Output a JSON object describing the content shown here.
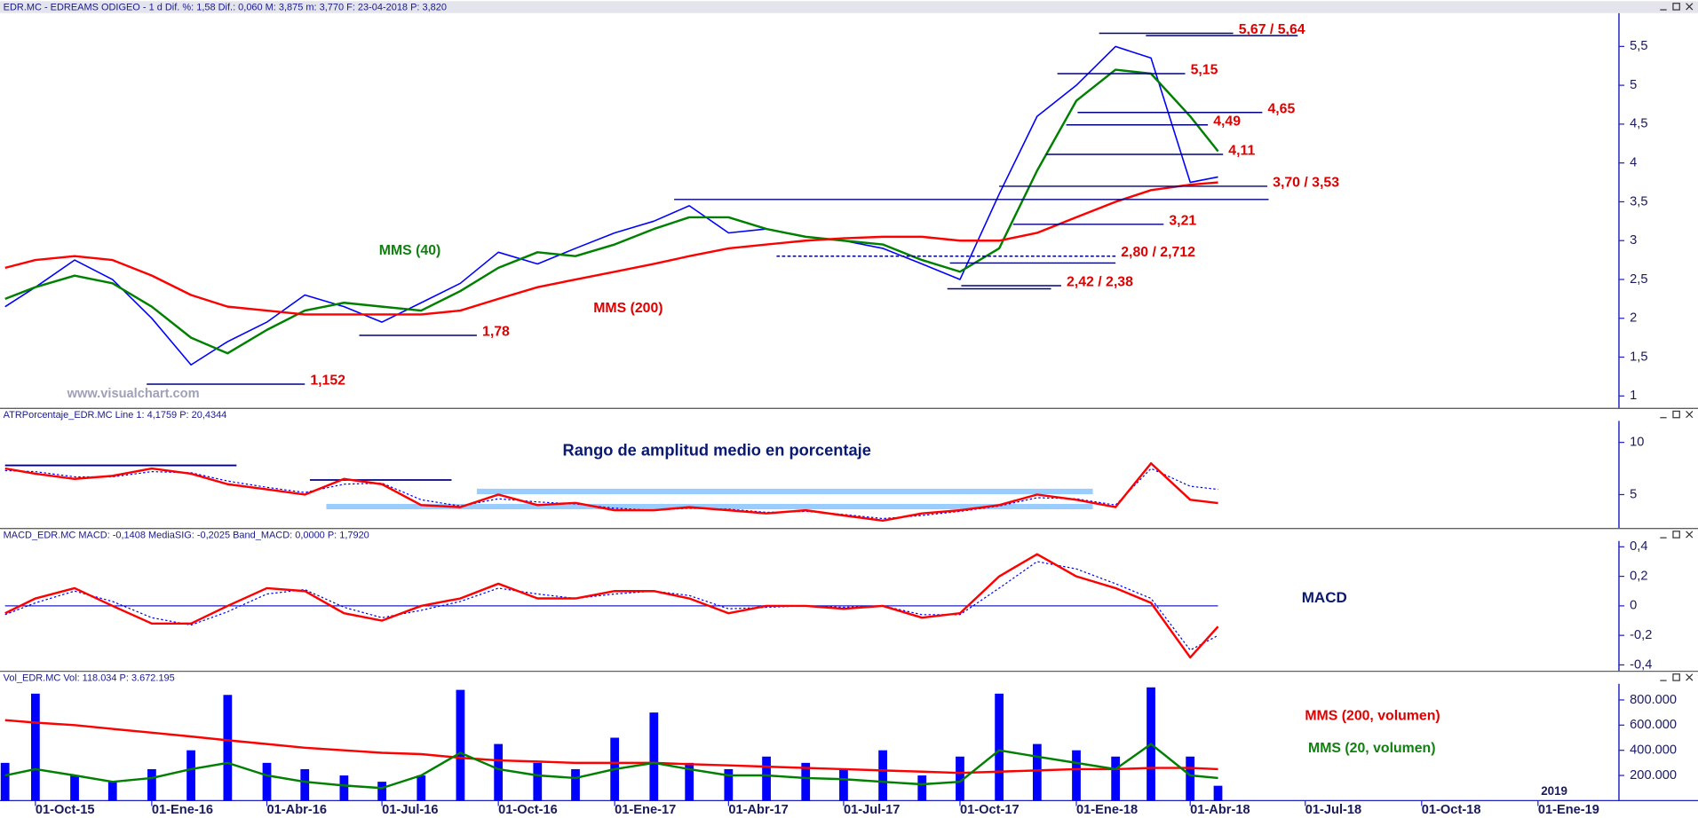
{
  "chart_data": [
    {
      "type": "line",
      "title": "EDR.MC - EDREAMS ODIGEO -  1 d  Dif. %: 1,58  Dif.: 0,060  M: 3,875  m: 3,770  F: 23-04-2018  P: 3,820",
      "x": [
        "2015-09-07",
        "2015-10-01",
        "2015-11-01",
        "2015-12-01",
        "2016-01-01",
        "2016-02-01",
        "2016-03-01",
        "2016-04-01",
        "2016-05-01",
        "2016-06-01",
        "2016-07-01",
        "2016-08-01",
        "2016-09-01",
        "2016-10-01",
        "2016-11-01",
        "2016-12-01",
        "2017-01-01",
        "2017-02-01",
        "2017-03-01",
        "2017-04-01",
        "2017-05-01",
        "2017-06-01",
        "2017-07-01",
        "2017-08-01",
        "2017-09-01",
        "2017-10-01",
        "2017-11-01",
        "2017-12-01",
        "2018-01-01",
        "2018-02-01",
        "2018-03-01",
        "2018-04-01",
        "2018-04-23"
      ],
      "xlim": [
        "2015-09-03",
        "2019-03-06"
      ],
      "ylim": [
        0.86,
        5.93
      ],
      "yticks": [
        1,
        {
          "value": 1.5,
          "label": "1,5"
        },
        2,
        {
          "value": 2.5,
          "label": "2,5"
        },
        3,
        {
          "value": 3.5,
          "label": "3,5"
        },
        4,
        {
          "value": 4.5,
          "label": "4,5"
        },
        5,
        {
          "value": 5.5,
          "label": "5,5"
        }
      ],
      "series": [
        {
          "color": "#0000ff",
          "values": [
            2.15,
            2.4,
            2.75,
            2.5,
            2.0,
            1.4,
            1.7,
            1.95,
            2.3,
            2.15,
            1.95,
            2.2,
            2.45,
            2.85,
            2.7,
            2.9,
            3.1,
            3.25,
            3.45,
            3.1,
            3.15,
            3.05,
            3.0,
            2.9,
            2.7,
            2.5,
            3.6,
            4.6,
            5.0,
            5.5,
            5.35,
            3.75,
            3.82
          ]
        },
        {
          "name": "MMS (40)",
          "color": "#008000",
          "values": [
            2.25,
            2.4,
            2.55,
            2.45,
            2.15,
            1.75,
            1.55,
            1.85,
            2.1,
            2.2,
            2.15,
            2.1,
            2.35,
            2.65,
            2.85,
            2.8,
            2.95,
            3.15,
            3.3,
            3.3,
            3.15,
            3.05,
            3.0,
            2.95,
            2.75,
            2.6,
            2.9,
            3.9,
            4.8,
            5.2,
            5.15,
            4.6,
            4.15
          ]
        },
        {
          "name": "MMS (200)",
          "color": "#ff0000",
          "values": [
            2.65,
            2.75,
            2.8,
            2.75,
            2.55,
            2.3,
            2.15,
            2.1,
            2.05,
            2.05,
            2.05,
            2.05,
            2.1,
            2.25,
            2.4,
            2.5,
            2.6,
            2.7,
            2.8,
            2.9,
            2.95,
            3.0,
            3.03,
            3.05,
            3.05,
            3.0,
            3.0,
            3.1,
            3.3,
            3.5,
            3.65,
            3.72,
            3.75
          ]
        }
      ],
      "levels": [
        {
          "label": "5,67 / 5,64",
          "lines": [
            {
              "value": 5.67,
              "from": "2018-01-19",
              "to": "2018-05-05"
            },
            {
              "value": 5.64,
              "from": "2018-02-25",
              "to": "2018-06-25"
            }
          ]
        },
        {
          "label": "5,15",
          "lines": [
            {
              "value": 5.15,
              "from": "2017-12-17",
              "to": "2018-03-28"
            }
          ]
        },
        {
          "label": "4,65",
          "lines": [
            {
              "value": 4.65,
              "from": "2018-01-02",
              "to": "2018-05-28"
            }
          ]
        },
        {
          "label": "4,49",
          "lines": [
            {
              "value": 4.49,
              "from": "2017-12-24",
              "to": "2018-04-15"
            }
          ]
        },
        {
          "label": "4,11",
          "lines": [
            {
              "value": 4.11,
              "from": "2017-12-08",
              "to": "2018-04-27"
            }
          ]
        },
        {
          "label": "3,70 / 3,53",
          "lines": [
            {
              "value": 3.7,
              "from": "2017-11-01",
              "to": "2018-06-01"
            },
            {
              "value": 3.53,
              "from": "2017-02-17",
              "to": "2018-06-02"
            }
          ]
        },
        {
          "label": "3,21",
          "lines": [
            {
              "value": 3.21,
              "from": "2017-11-12",
              "to": "2018-03-11"
            }
          ]
        },
        {
          "label": "2,80 / 2,712",
          "lines": [
            {
              "value": 2.8,
              "from": "2017-05-09",
              "to": "2018-02-01",
              "style": "dashed"
            },
            {
              "value": 2.712,
              "from": "2017-09-23",
              "to": "2018-02-01"
            }
          ]
        },
        {
          "label": "2,42 / 2,38",
          "lines": [
            {
              "value": 2.42,
              "from": "2017-10-02",
              "to": "2017-12-20"
            },
            {
              "value": 2.38,
              "from": "2017-09-21",
              "to": "2017-12-12"
            }
          ]
        },
        {
          "label": "1,78",
          "lines": [
            {
              "value": 1.78,
              "from": "2016-06-13",
              "to": "2016-09-14"
            }
          ]
        },
        {
          "label": "1,152",
          "lines": [
            {
              "value": 1.152,
              "from": "2015-12-28",
              "to": "2016-05-01"
            }
          ]
        }
      ],
      "annotations": [
        "www.visualchart.com"
      ]
    },
    {
      "type": "line",
      "title": "ATRPorcentaje_EDR.MC  Line 1: 4,1759  P: 20,4344",
      "x": [
        "2015-09-07",
        "2015-10-01",
        "2015-11-01",
        "2015-12-01",
        "2016-01-01",
        "2016-02-01",
        "2016-03-01",
        "2016-04-01",
        "2016-05-01",
        "2016-06-01",
        "2016-07-01",
        "2016-08-01",
        "2016-09-01",
        "2016-10-01",
        "2016-11-01",
        "2016-12-01",
        "2017-01-01",
        "2017-02-01",
        "2017-03-01",
        "2017-04-01",
        "2017-05-01",
        "2017-06-01",
        "2017-07-01",
        "2017-08-01",
        "2017-09-01",
        "2017-10-01",
        "2017-11-01",
        "2017-12-01",
        "2018-01-01",
        "2018-02-01",
        "2018-03-01",
        "2018-04-01",
        "2018-04-23"
      ],
      "xlim": [
        "2015-09-03",
        "2019-03-06"
      ],
      "ylim": [
        1.8,
        13.2
      ],
      "yticks": [
        5,
        10
      ],
      "series": [
        {
          "color": "#0000ff",
          "style": "dotted",
          "values": [
            7.3,
            7.2,
            6.7,
            6.7,
            7.2,
            7.1,
            6.3,
            5.7,
            5.2,
            6.0,
            6.1,
            4.5,
            3.9,
            4.6,
            4.3,
            4.1,
            3.7,
            3.5,
            3.7,
            3.6,
            3.3,
            3.4,
            3.1,
            2.7,
            3.0,
            3.4,
            3.9,
            4.7,
            4.6,
            4.0,
            7.5,
            5.8,
            5.5
          ]
        },
        {
          "color": "#ff0000",
          "values": [
            7.5,
            7.0,
            6.5,
            6.8,
            7.5,
            7.0,
            6.0,
            5.5,
            5.0,
            6.5,
            6.0,
            4.0,
            3.8,
            5.0,
            4.0,
            4.2,
            3.5,
            3.5,
            3.8,
            3.5,
            3.2,
            3.5,
            3.0,
            2.5,
            3.2,
            3.5,
            4.0,
            5.0,
            4.5,
            3.8,
            8.0,
            4.5,
            4.18
          ]
        }
      ],
      "ranges": [
        {
          "value": 7.8,
          "from": "2015-09-07",
          "to": "2016-03-08",
          "color": "#000080"
        },
        {
          "value": 6.4,
          "from": "2016-05-05",
          "to": "2016-08-25",
          "color": "#000080"
        },
        {
          "value": 5.3,
          "from": "2016-09-14",
          "to": "2018-01-14",
          "color": "#99ccff",
          "style": "thick"
        },
        {
          "value": 3.85,
          "from": "2016-05-18",
          "to": "2018-01-14",
          "color": "#99ccff",
          "style": "thick"
        }
      ],
      "annotations": [
        "Rango de amplitud medio en porcentaje"
      ]
    },
    {
      "type": "line",
      "title": "MACD_EDR.MC  MACD: -0,1408  MediaSIG: -0,2025  Band_MACD: 0,0000  P: 1,7920",
      "x": [
        "2015-09-07",
        "2015-10-01",
        "2015-11-01",
        "2015-12-01",
        "2016-01-01",
        "2016-02-01",
        "2016-03-01",
        "2016-04-01",
        "2016-05-01",
        "2016-06-01",
        "2016-07-01",
        "2016-08-01",
        "2016-09-01",
        "2016-10-01",
        "2016-11-01",
        "2016-12-01",
        "2017-01-01",
        "2017-02-01",
        "2017-03-01",
        "2017-04-01",
        "2017-05-01",
        "2017-06-01",
        "2017-07-01",
        "2017-08-01",
        "2017-09-01",
        "2017-10-01",
        "2017-11-01",
        "2017-12-01",
        "2018-01-01",
        "2018-02-01",
        "2018-03-01",
        "2018-04-01",
        "2018-04-23"
      ],
      "xlim": [
        "2015-09-03",
        "2019-03-06"
      ],
      "ylim": [
        -0.44,
        0.52
      ],
      "yticks": [
        {
          "value": -0.4,
          "label": "-0,4"
        },
        {
          "value": -0.2,
          "label": "-0,2"
        },
        0,
        {
          "value": 0.2,
          "label": "0,2"
        },
        {
          "value": 0.4,
          "label": "0,4"
        }
      ],
      "band": 0,
      "series": [
        {
          "color": "#0000ff",
          "style": "dotted",
          "values": [
            -0.06,
            0.02,
            0.1,
            0.03,
            -0.08,
            -0.13,
            -0.04,
            0.08,
            0.11,
            -0.01,
            -0.08,
            -0.03,
            0.03,
            0.12,
            0.08,
            0.05,
            0.08,
            0.1,
            0.07,
            -0.02,
            -0.01,
            0.0,
            -0.01,
            0.0,
            -0.06,
            -0.06,
            0.12,
            0.3,
            0.25,
            0.15,
            0.05,
            -0.3,
            -0.2
          ]
        },
        {
          "color": "#ff0000",
          "values": [
            -0.05,
            0.05,
            0.12,
            0.0,
            -0.12,
            -0.12,
            0.0,
            0.12,
            0.1,
            -0.05,
            -0.1,
            0.0,
            0.05,
            0.15,
            0.05,
            0.05,
            0.1,
            0.1,
            0.05,
            -0.05,
            0.0,
            0.0,
            -0.02,
            0.0,
            -0.08,
            -0.05,
            0.2,
            0.35,
            0.2,
            0.12,
            0.02,
            -0.35,
            -0.14
          ]
        }
      ],
      "annotations": [
        "MACD"
      ]
    },
    {
      "type": "bar",
      "title": "Vol_EDR.MC  Vol: 118.034  P: 3.672.195",
      "x": [
        "2015-09-07",
        "2015-10-01",
        "2015-11-01",
        "2015-12-01",
        "2016-01-01",
        "2016-02-01",
        "2016-03-01",
        "2016-04-01",
        "2016-05-01",
        "2016-06-01",
        "2016-07-01",
        "2016-08-01",
        "2016-09-01",
        "2016-10-01",
        "2016-11-01",
        "2016-12-01",
        "2017-01-01",
        "2017-02-01",
        "2017-03-01",
        "2017-04-01",
        "2017-05-01",
        "2017-06-01",
        "2017-07-01",
        "2017-08-01",
        "2017-09-01",
        "2017-10-01",
        "2017-11-01",
        "2017-12-01",
        "2018-01-01",
        "2018-02-01",
        "2018-03-01",
        "2018-04-01",
        "2018-04-23"
      ],
      "xlim": [
        "2015-09-03",
        "2019-03-06"
      ],
      "ylim": [
        0,
        1023000
      ],
      "yticks": [
        {
          "value": 200000,
          "label": "200.000"
        },
        {
          "value": 400000,
          "label": "400.000"
        },
        {
          "value": 600000,
          "label": "600.000"
        },
        {
          "value": 800000,
          "label": "800.000"
        }
      ],
      "xticks": [
        {
          "value": "2015-10-01",
          "label": "01-Oct-15"
        },
        {
          "value": "2016-01-01",
          "label": "01-Ene-16"
        },
        {
          "value": "2016-04-01",
          "label": "01-Abr-16"
        },
        {
          "value": "2016-07-01",
          "label": "01-Jul-16"
        },
        {
          "value": "2016-10-01",
          "label": "01-Oct-16"
        },
        {
          "value": "2017-01-01",
          "label": "01-Ene-17"
        },
        {
          "value": "2017-04-01",
          "label": "01-Abr-17"
        },
        {
          "value": "2017-07-01",
          "label": "01-Jul-17"
        },
        {
          "value": "2017-10-01",
          "label": "01-Oct-17"
        },
        {
          "value": "2018-01-01",
          "label": "01-Ene-18"
        },
        {
          "value": "2018-04-01",
          "label": "01-Abr-18"
        },
        {
          "value": "2018-07-01",
          "label": "01-Jul-18"
        },
        {
          "value": "2018-10-01",
          "label": "01-Oct-18"
        },
        {
          "value": "2019-01-01",
          "label": "01-Ene-19"
        }
      ],
      "series": [
        {
          "color": "#0000ff",
          "values": [
            300000,
            850000,
            200000,
            150000,
            250000,
            400000,
            840000,
            300000,
            250000,
            200000,
            150000,
            200000,
            880000,
            450000,
            300000,
            250000,
            500000,
            700000,
            300000,
            250000,
            350000,
            300000,
            250000,
            400000,
            200000,
            350000,
            850000,
            450000,
            400000,
            350000,
            900000,
            350000,
            118034
          ]
        },
        {
          "name": "MMS (200, volumen)",
          "type": "line",
          "color": "#ff0000",
          "values": [
            640000,
            620000,
            600000,
            570000,
            540000,
            510000,
            480000,
            450000,
            420000,
            400000,
            380000,
            370000,
            340000,
            320000,
            310000,
            300000,
            300000,
            300000,
            290000,
            280000,
            270000,
            260000,
            250000,
            240000,
            230000,
            220000,
            230000,
            240000,
            250000,
            250000,
            260000,
            260000,
            250000
          ]
        },
        {
          "name": "MMS (20, volumen)",
          "type": "line",
          "color": "#008000",
          "values": [
            200000,
            250000,
            200000,
            150000,
            180000,
            250000,
            300000,
            200000,
            150000,
            120000,
            100000,
            200000,
            380000,
            250000,
            200000,
            180000,
            250000,
            300000,
            250000,
            200000,
            200000,
            180000,
            170000,
            150000,
            130000,
            150000,
            400000,
            350000,
            300000,
            250000,
            450000,
            200000,
            180000
          ]
        }
      ],
      "annotations": [
        "2019"
      ]
    }
  ]
}
